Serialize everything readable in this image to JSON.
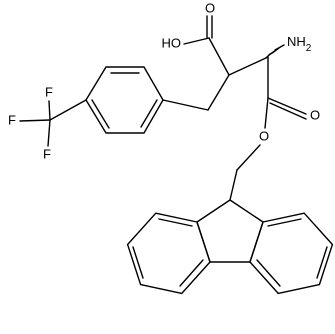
{
  "atoms": [
    {
      "label": "HO"
    },
    {
      "label": "O"
    },
    {
      "label": "NH",
      "subscript": "2"
    },
    {
      "label": "O"
    },
    {
      "label": "O"
    },
    {
      "label": "F"
    },
    {
      "label": "F"
    },
    {
      "label": "F"
    }
  ]
}
